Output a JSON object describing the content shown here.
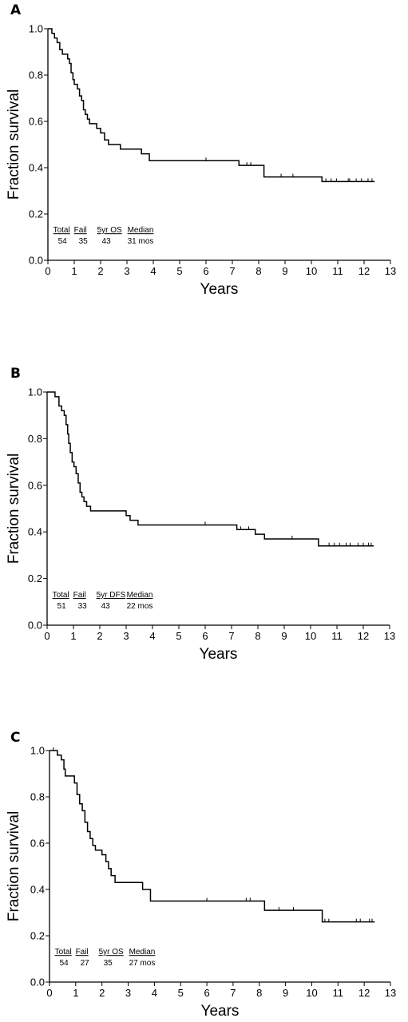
{
  "colors": {
    "panel_letter": "#1f6f8b",
    "axis": "#000000",
    "curve": "#000000"
  },
  "chart_data": [
    {
      "panel": "A",
      "type": "line",
      "xlabel": "Years",
      "ylabel": "Fraction survival",
      "xlim": [
        0,
        13
      ],
      "ylim": [
        0.0,
        1.0
      ],
      "x_ticks": [
        "0",
        "1",
        "2",
        "3",
        "4",
        "5",
        "6",
        "7",
        "8",
        "9",
        "10",
        "11",
        "12",
        "13"
      ],
      "y_ticks": [
        "0.0",
        "0.2",
        "0.4",
        "0.6",
        "0.8",
        "1.0"
      ],
      "stats": {
        "headers": [
          "Total",
          "Fail",
          "5yr OS",
          "Median"
        ],
        "values": [
          "54",
          "35",
          "43",
          "31 mos"
        ]
      },
      "series": [
        {
          "step_x": [
            0,
            0.15,
            0.25,
            0.35,
            0.45,
            0.55,
            0.65,
            0.75,
            0.82,
            0.88,
            0.95,
            1.0,
            1.05,
            1.12,
            1.2,
            1.28,
            1.35,
            1.42,
            1.5,
            1.58,
            1.65,
            1.72,
            1.85,
            2.0,
            2.15,
            2.3,
            2.45,
            2.75,
            3.0,
            3.15,
            3.55,
            3.85,
            6.0,
            7.25,
            7.35,
            7.6,
            8.2,
            10.4,
            12.4
          ],
          "step_y": [
            1.0,
            0.98,
            0.96,
            0.94,
            0.91,
            0.89,
            0.89,
            0.87,
            0.85,
            0.81,
            0.78,
            0.76,
            0.76,
            0.74,
            0.71,
            0.69,
            0.65,
            0.63,
            0.61,
            0.59,
            0.59,
            0.59,
            0.57,
            0.55,
            0.52,
            0.5,
            0.5,
            0.48,
            0.48,
            0.48,
            0.46,
            0.43,
            0.43,
            0.41,
            0.41,
            0.41,
            0.36,
            0.34,
            0.34
          ],
          "censored_x": [
            6.0,
            7.55,
            7.7,
            8.85,
            9.3,
            10.55,
            10.75,
            10.95,
            11.4,
            11.45,
            11.7,
            11.9,
            12.15,
            12.3
          ]
        }
      ]
    },
    {
      "panel": "B",
      "type": "line",
      "xlabel": "Years",
      "ylabel": "Fraction survival",
      "xlim": [
        0,
        13
      ],
      "ylim": [
        0.0,
        1.0
      ],
      "x_ticks": [
        "0",
        "1",
        "2",
        "3",
        "4",
        "5",
        "6",
        "7",
        "8",
        "9",
        "10",
        "11",
        "12",
        "13"
      ],
      "y_ticks": [
        "0.0",
        "0.2",
        "0.4",
        "0.6",
        "0.8",
        "1.0"
      ],
      "stats": {
        "headers": [
          "Total",
          "Fail",
          "5yr DFS",
          "Median"
        ],
        "values": [
          "51",
          "33",
          "43",
          "22 mos"
        ]
      },
      "series": [
        {
          "step_x": [
            0,
            0.3,
            0.45,
            0.55,
            0.65,
            0.72,
            0.78,
            0.82,
            0.88,
            0.95,
            1.02,
            1.1,
            1.18,
            1.25,
            1.32,
            1.4,
            1.5,
            1.65,
            1.85,
            3.0,
            3.15,
            3.45,
            7.2,
            7.45,
            7.9,
            8.25,
            10.3,
            12.4
          ],
          "step_y": [
            1.0,
            0.98,
            0.94,
            0.92,
            0.9,
            0.86,
            0.82,
            0.78,
            0.74,
            0.7,
            0.68,
            0.65,
            0.61,
            0.57,
            0.55,
            0.53,
            0.51,
            0.49,
            0.49,
            0.47,
            0.45,
            0.43,
            0.41,
            0.41,
            0.39,
            0.37,
            0.34,
            0.34
          ],
          "censored_x": [
            6.0,
            7.35,
            7.65,
            9.3,
            10.7,
            10.9,
            11.1,
            11.35,
            11.5,
            11.8,
            12.0,
            12.2,
            12.3
          ]
        }
      ]
    },
    {
      "panel": "C",
      "type": "line",
      "xlabel": "Years",
      "ylabel": "Fraction survival",
      "xlim": [
        0,
        13
      ],
      "ylim": [
        0.0,
        1.0
      ],
      "x_ticks": [
        "0",
        "1",
        "2",
        "3",
        "4",
        "5",
        "6",
        "7",
        "8",
        "9",
        "10",
        "11",
        "12",
        "13"
      ],
      "y_ticks": [
        "0.0",
        "0.2",
        "0.4",
        "0.6",
        "0.8",
        "1.0"
      ],
      "stats": {
        "headers": [
          "Total",
          "Fail",
          "5yr OS",
          "Median"
        ],
        "values": [
          "54",
          "27",
          "35",
          "27 mos"
        ]
      },
      "series": [
        {
          "step_x": [
            0,
            0.3,
            0.45,
            0.55,
            0.6,
            0.95,
            1.05,
            1.15,
            1.25,
            1.35,
            1.45,
            1.55,
            1.65,
            1.75,
            2.0,
            2.15,
            2.25,
            2.35,
            2.5,
            2.65,
            3.0,
            3.55,
            3.85,
            8.2,
            10.4,
            12.4
          ],
          "step_y": [
            1.0,
            0.98,
            0.96,
            0.92,
            0.89,
            0.86,
            0.81,
            0.77,
            0.74,
            0.69,
            0.65,
            0.62,
            0.59,
            0.57,
            0.55,
            0.52,
            0.49,
            0.46,
            0.43,
            0.43,
            0.43,
            0.4,
            0.35,
            0.31,
            0.26,
            0.26
          ],
          "censored_x": [
            0.15,
            6.0,
            7.5,
            7.65,
            8.75,
            9.3,
            10.5,
            10.65,
            11.7,
            11.85,
            12.2,
            12.3
          ]
        }
      ]
    }
  ]
}
